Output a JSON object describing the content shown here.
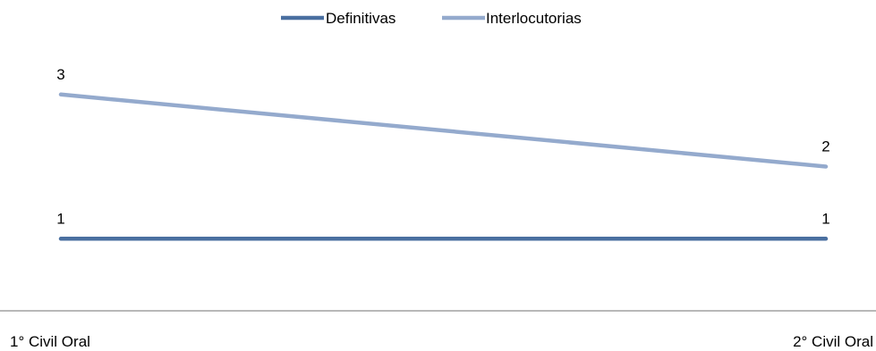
{
  "chart_data": {
    "type": "line",
    "categories": [
      "1° Civil Oral",
      "2° Civil Oral"
    ],
    "series": [
      {
        "name": "Definitivas",
        "values": [
          1,
          1
        ],
        "color": "#4a6fa0"
      },
      {
        "name": "Interlocutorias",
        "values": [
          3,
          2
        ],
        "color": "#94aacd"
      }
    ],
    "ylim": [
      0,
      4
    ],
    "grid": false,
    "legend": "top-center",
    "axis_color": "#a0a0a0"
  }
}
